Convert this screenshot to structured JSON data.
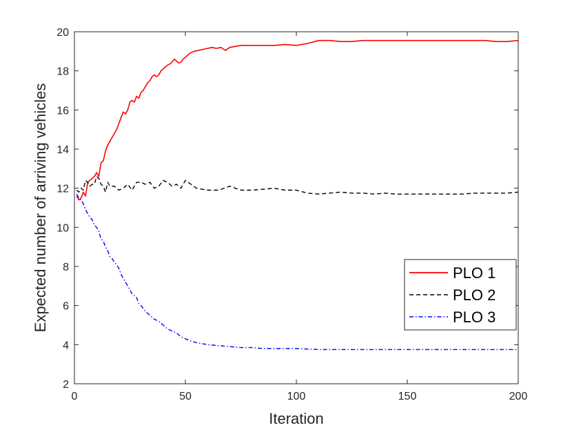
{
  "chart_data": {
    "type": "line",
    "xlabel": "Iteration",
    "ylabel": "Expected number of arriving vehicles",
    "xlim": [
      0,
      200
    ],
    "ylim": [
      2,
      20
    ],
    "xticks": [
      "0",
      "50",
      "100",
      "150",
      "200"
    ],
    "yticks": [
      "2",
      "4",
      "6",
      "8",
      "10",
      "12",
      "14",
      "16",
      "18",
      "20"
    ],
    "grid": false,
    "legend_position": "right",
    "series": [
      {
        "name": "PLO 1",
        "color": "#ff0000",
        "style": "solid",
        "x": [
          1,
          2,
          3,
          4,
          5,
          6,
          7,
          8,
          9,
          10,
          11,
          12,
          13,
          14,
          15,
          16,
          17,
          18,
          19,
          20,
          21,
          22,
          23,
          24,
          25,
          26,
          27,
          28,
          29,
          30,
          31,
          32,
          33,
          34,
          35,
          36,
          37,
          38,
          39,
          40,
          41,
          42,
          43,
          44,
          45,
          46,
          47,
          48,
          49,
          50,
          52,
          54,
          56,
          58,
          60,
          62,
          64,
          66,
          68,
          70,
          75,
          80,
          85,
          90,
          95,
          100,
          105,
          110,
          115,
          120,
          125,
          130,
          135,
          140,
          145,
          150,
          155,
          160,
          165,
          170,
          175,
          180,
          185,
          190,
          195,
          200
        ],
        "y": [
          11.6,
          11.4,
          11.5,
          11.8,
          11.6,
          12.3,
          12.4,
          12.5,
          12.6,
          12.8,
          12.6,
          13.3,
          13.4,
          13.9,
          14.2,
          14.4,
          14.6,
          14.8,
          15.0,
          15.3,
          15.6,
          15.9,
          15.8,
          16.0,
          16.4,
          16.5,
          16.4,
          16.7,
          16.6,
          16.9,
          17.0,
          17.2,
          17.4,
          17.5,
          17.7,
          17.8,
          17.7,
          17.8,
          18.0,
          18.1,
          18.2,
          18.3,
          18.35,
          18.45,
          18.6,
          18.5,
          18.4,
          18.45,
          18.6,
          18.7,
          18.9,
          19.0,
          19.05,
          19.1,
          19.15,
          19.2,
          19.15,
          19.2,
          19.05,
          19.2,
          19.3,
          19.3,
          19.3,
          19.3,
          19.35,
          19.3,
          19.4,
          19.55,
          19.55,
          19.5,
          19.5,
          19.55,
          19.55,
          19.55,
          19.55,
          19.55,
          19.55,
          19.55,
          19.55,
          19.55,
          19.55,
          19.55,
          19.55,
          19.5,
          19.5,
          19.55
        ]
      },
      {
        "name": "PLO 2",
        "color": "#000000",
        "style": "dashed",
        "x": [
          1,
          2,
          3,
          4,
          5,
          6,
          7,
          8,
          9,
          10,
          11,
          12,
          13,
          14,
          15,
          16,
          18,
          20,
          22,
          24,
          26,
          28,
          30,
          32,
          34,
          36,
          38,
          40,
          42,
          44,
          46,
          48,
          50,
          55,
          60,
          65,
          70,
          75,
          80,
          85,
          90,
          95,
          100,
          105,
          110,
          115,
          120,
          125,
          130,
          135,
          140,
          145,
          150,
          155,
          160,
          165,
          170,
          175,
          180,
          185,
          190,
          195,
          200
        ],
        "y": [
          11.9,
          11.8,
          12.0,
          11.9,
          12.4,
          12.3,
          12.1,
          12.2,
          12.2,
          12.6,
          12.5,
          12.2,
          12.1,
          11.8,
          12.3,
          12.1,
          12.1,
          11.9,
          12.0,
          12.2,
          11.9,
          12.3,
          12.3,
          12.2,
          12.3,
          12.0,
          12.1,
          12.4,
          12.3,
          12.1,
          12.2,
          12.0,
          12.4,
          12.0,
          11.9,
          11.9,
          12.1,
          11.9,
          11.9,
          11.95,
          12.0,
          11.9,
          11.9,
          11.75,
          11.7,
          11.75,
          11.8,
          11.75,
          11.75,
          11.7,
          11.75,
          11.7,
          11.7,
          11.7,
          11.7,
          11.7,
          11.7,
          11.7,
          11.75,
          11.75,
          11.75,
          11.75,
          11.8
        ]
      },
      {
        "name": "PLO 3",
        "color": "#0000ff",
        "style": "dashdot",
        "x": [
          1,
          2,
          3,
          4,
          5,
          6,
          7,
          8,
          9,
          10,
          11,
          12,
          13,
          14,
          15,
          16,
          17,
          18,
          19,
          20,
          21,
          22,
          23,
          24,
          25,
          26,
          27,
          28,
          29,
          30,
          32,
          34,
          36,
          38,
          40,
          42,
          44,
          46,
          48,
          50,
          52,
          55,
          60,
          65,
          70,
          75,
          80,
          85,
          90,
          95,
          100,
          110,
          120,
          130,
          140,
          150,
          160,
          170,
          180,
          190,
          200
        ],
        "y": [
          11.7,
          11.5,
          11.4,
          11.2,
          10.9,
          10.7,
          10.5,
          10.4,
          10.1,
          10.0,
          9.8,
          9.4,
          9.3,
          9.0,
          8.8,
          8.5,
          8.4,
          8.2,
          8.1,
          7.9,
          7.6,
          7.4,
          7.2,
          7.0,
          6.8,
          6.6,
          6.5,
          6.4,
          6.1,
          6.0,
          5.7,
          5.5,
          5.3,
          5.2,
          5.0,
          4.8,
          4.7,
          4.6,
          4.4,
          4.3,
          4.2,
          4.1,
          4.0,
          3.95,
          3.9,
          3.85,
          3.85,
          3.8,
          3.8,
          3.8,
          3.8,
          3.75,
          3.75,
          3.75,
          3.75,
          3.75,
          3.75,
          3.75,
          3.75,
          3.75,
          3.75
        ]
      }
    ]
  }
}
